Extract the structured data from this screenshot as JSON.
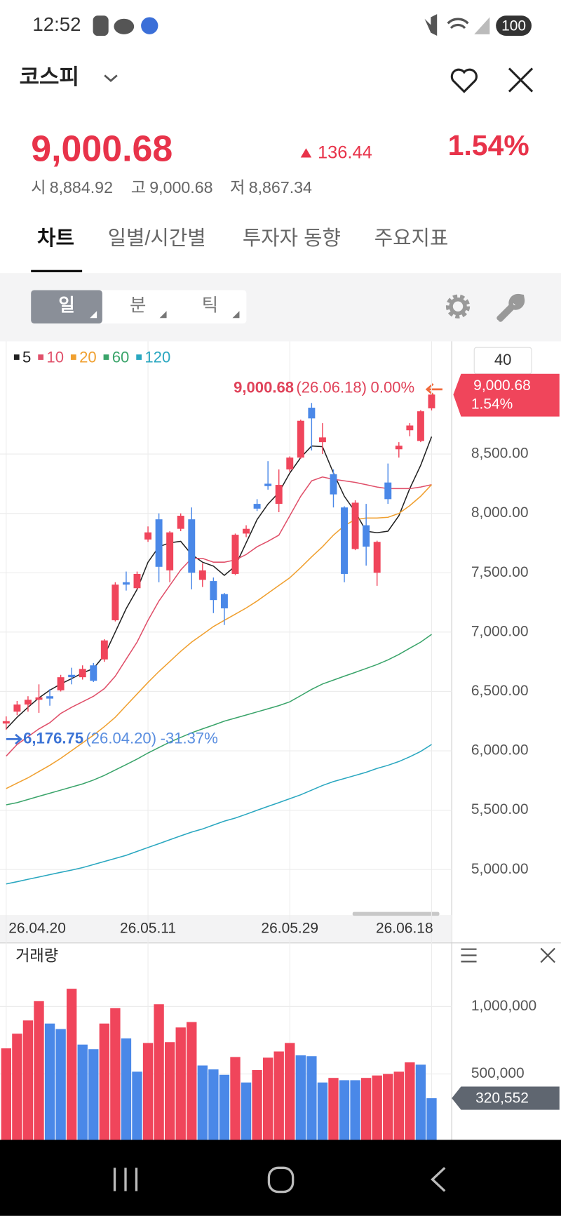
{
  "status_bar": {
    "time": "12:52",
    "battery": "100"
  },
  "header": {
    "title": "코스피"
  },
  "quote": {
    "price": "9,000.68",
    "change": "136.44",
    "change_pct": "1.54%",
    "summary": [
      {
        "label": "시",
        "value": "8,884.92"
      },
      {
        "label": "고",
        "value": "9,000.68"
      },
      {
        "label": "저",
        "value": "8,867.34"
      }
    ]
  },
  "tabs": [
    "차트",
    "일별/시간별",
    "투자자 동향",
    "주요지표"
  ],
  "toolbar": {
    "periods": [
      "일",
      "분",
      "틱"
    ]
  },
  "period_input": "40",
  "chart_data": [
    {
      "type": "candlestick",
      "up_color": "#f0455b",
      "down_color": "#4a88e8",
      "categories": [
        "26.04.20",
        null,
        null,
        null,
        null,
        null,
        null,
        null,
        null,
        null,
        null,
        null,
        null,
        "26.05.11",
        null,
        null,
        null,
        null,
        null,
        null,
        null,
        null,
        null,
        null,
        null,
        null,
        "26.05.29",
        null,
        null,
        null,
        null,
        null,
        null,
        null,
        null,
        null,
        null,
        null,
        null,
        "26.06.18"
      ],
      "open": [
        6230,
        6330,
        6390,
        6430,
        6460,
        6510,
        6640,
        6620,
        6720,
        6770,
        7100,
        7420,
        7370,
        7780,
        7950,
        7520,
        7870,
        7950,
        7440,
        7430,
        7320,
        7490,
        7830,
        8080,
        8250,
        8080,
        8370,
        8470,
        8890,
        8600,
        8330,
        8050,
        7700,
        7900,
        7500,
        8260,
        8540,
        8700,
        8610,
        8884.92
      ],
      "high": [
        6290,
        6420,
        6460,
        6560,
        6520,
        6640,
        6700,
        6720,
        6740,
        6940,
        7420,
        7510,
        7510,
        7890,
        8000,
        7850,
        8000,
        8050,
        7580,
        7460,
        7330,
        7830,
        7900,
        8120,
        8440,
        8370,
        8480,
        8790,
        8930,
        8760,
        8370,
        8060,
        8110,
        8080,
        7770,
        8420,
        8600,
        8760,
        8870,
        9000.68
      ],
      "low": [
        6176.75,
        6300,
        6330,
        6320,
        6380,
        6500,
        6560,
        6600,
        6580,
        6750,
        7090,
        7350,
        7360,
        7760,
        7420,
        7420,
        7850,
        7360,
        7380,
        7160,
        7060,
        7480,
        7800,
        8020,
        8200,
        8010,
        8350,
        8460,
        8530,
        8500,
        8050,
        7420,
        7690,
        7560,
        7390,
        8080,
        8470,
        8650,
        8600,
        8867.34
      ],
      "close": [
        6250,
        6390,
        6430,
        6450,
        6440,
        6620,
        6620,
        6690,
        6590,
        6930,
        7400,
        7400,
        7490,
        7840,
        7550,
        7840,
        7980,
        7500,
        7520,
        7270,
        7200,
        7820,
        7870,
        8040,
        8230,
        8240,
        8470,
        8780,
        8800,
        8640,
        8160,
        7490,
        8090,
        7720,
        7760,
        8120,
        8570,
        8740,
        8860,
        9000.68
      ],
      "series": [
        {
          "name": "5",
          "color": "#222222",
          "values": [
            6185,
            6283,
            6367,
            6446,
            6511,
            6563,
            6609,
            6655,
            6694,
            6805,
            7001,
            7197,
            7360,
            7589,
            7719,
            7752,
            7765,
            7654,
            7589,
            7556,
            7478,
            7556,
            7752,
            7948,
            8078,
            8176,
            8340,
            8470,
            8568,
            8562,
            8340,
            8144,
            8013,
            7850,
            7837,
            7850,
            7980,
            8209,
            8405,
            8646
          ]
        },
        {
          "name": "10",
          "color": "#e0506a",
          "values": [
            5956,
            6054,
            6119,
            6185,
            6237,
            6315,
            6367,
            6413,
            6459,
            6524,
            6629,
            6772,
            6916,
            7099,
            7262,
            7393,
            7523,
            7621,
            7621,
            7589,
            7589,
            7608,
            7654,
            7719,
            7765,
            7817,
            7980,
            8144,
            8274,
            8307,
            8287,
            8274,
            8261,
            8242,
            8222,
            8209,
            8209,
            8209,
            8222,
            8242
          ]
        },
        {
          "name": "20",
          "color": "#f0a030",
          "values": [
            5682,
            5728,
            5773,
            5826,
            5878,
            5937,
            6002,
            6067,
            6132,
            6204,
            6283,
            6381,
            6479,
            6576,
            6668,
            6753,
            6838,
            6916,
            6981,
            7047,
            7099,
            7151,
            7203,
            7262,
            7327,
            7393,
            7458,
            7543,
            7634,
            7719,
            7817,
            7896,
            7948,
            7961,
            7961,
            7967,
            8000,
            8065,
            8144,
            8242
          ]
        },
        {
          "name": "60",
          "color": "#3aa46a",
          "values": [
            5545,
            5564,
            5590,
            5617,
            5643,
            5669,
            5695,
            5721,
            5754,
            5793,
            5839,
            5884,
            5930,
            5982,
            6028,
            6074,
            6113,
            6152,
            6185,
            6217,
            6250,
            6276,
            6302,
            6328,
            6354,
            6381,
            6413,
            6465,
            6518,
            6563,
            6596,
            6629,
            6661,
            6694,
            6727,
            6766,
            6812,
            6864,
            6916,
            6981
          ]
        },
        {
          "name": "120",
          "color": "#2aa7c0",
          "values": [
            4879,
            4898,
            4918,
            4937,
            4957,
            4977,
            4996,
            5016,
            5042,
            5068,
            5094,
            5120,
            5153,
            5186,
            5218,
            5251,
            5284,
            5316,
            5342,
            5375,
            5408,
            5434,
            5466,
            5499,
            5532,
            5564,
            5597,
            5630,
            5669,
            5708,
            5741,
            5767,
            5793,
            5819,
            5852,
            5878,
            5910,
            5950,
            5995,
            6054
          ]
        }
      ],
      "ylim": [
        4630,
        9430
      ],
      "yticks": [
        {
          "value": 5000,
          "label": "5,000.00"
        },
        {
          "value": 5500,
          "label": "5,500.00"
        },
        {
          "value": 6000,
          "label": "6,000.00"
        },
        {
          "value": 6500,
          "label": "6,500.00"
        },
        {
          "value": 7000,
          "label": "7,000.00"
        },
        {
          "value": 7500,
          "label": "7,500.00"
        },
        {
          "value": 8000,
          "label": "8,000.00"
        },
        {
          "value": 8500,
          "label": "8,500.00"
        }
      ],
      "grid": true,
      "high_annotation": {
        "label": "9,000.68",
        "date": "(26.06.18)",
        "pct": "0.00%"
      },
      "low_annotation": {
        "label": "6,176.75",
        "date": "(26.04.20)",
        "pct": "-31.37%"
      },
      "price_tag": {
        "label": "9,000.68",
        "pct": "1.54%"
      }
    },
    {
      "type": "bar",
      "title": "거래량",
      "values": [
        690000,
        799000,
        897000,
        1040000,
        874000,
        833000,
        1132000,
        718000,
        684000,
        874000,
        988000,
        764000,
        517000,
        730000,
        1017000,
        736000,
        845000,
        885000,
        563000,
        534000,
        494000,
        626000,
        437000,
        529000,
        621000,
        667000,
        730000,
        638000,
        632000,
        437000,
        471000,
        454000,
        454000,
        471000,
        489000,
        500000,
        517000,
        586000,
        569000,
        320552
      ],
      "colors": [
        "#f0455b",
        "#f0455b",
        "#f0455b",
        "#f0455b",
        "#4a88e8",
        "#4a88e8",
        "#f0455b",
        "#4a88e8",
        "#4a88e8",
        "#f0455b",
        "#f0455b",
        "#4a88e8",
        "#4a88e8",
        "#f0455b",
        "#f0455b",
        "#f0455b",
        "#f0455b",
        "#f0455b",
        "#4a88e8",
        "#4a88e8",
        "#4a88e8",
        "#f0455b",
        "#4a88e8",
        "#f0455b",
        "#f0455b",
        "#f0455b",
        "#f0455b",
        "#4a88e8",
        "#4a88e8",
        "#4a88e8",
        "#f0455b",
        "#4a88e8",
        "#4a88e8",
        "#f0455b",
        "#f0455b",
        "#f0455b",
        "#f0455b",
        "#f0455b",
        "#4a88e8",
        "#4a88e8"
      ],
      "current_label": "320,552",
      "ylim": [
        0,
        1460000
      ],
      "yticks": [
        {
          "value": 500000,
          "label": "500,000"
        },
        {
          "value": 1000000,
          "label": "1,000,000"
        }
      ],
      "grid": true
    }
  ]
}
